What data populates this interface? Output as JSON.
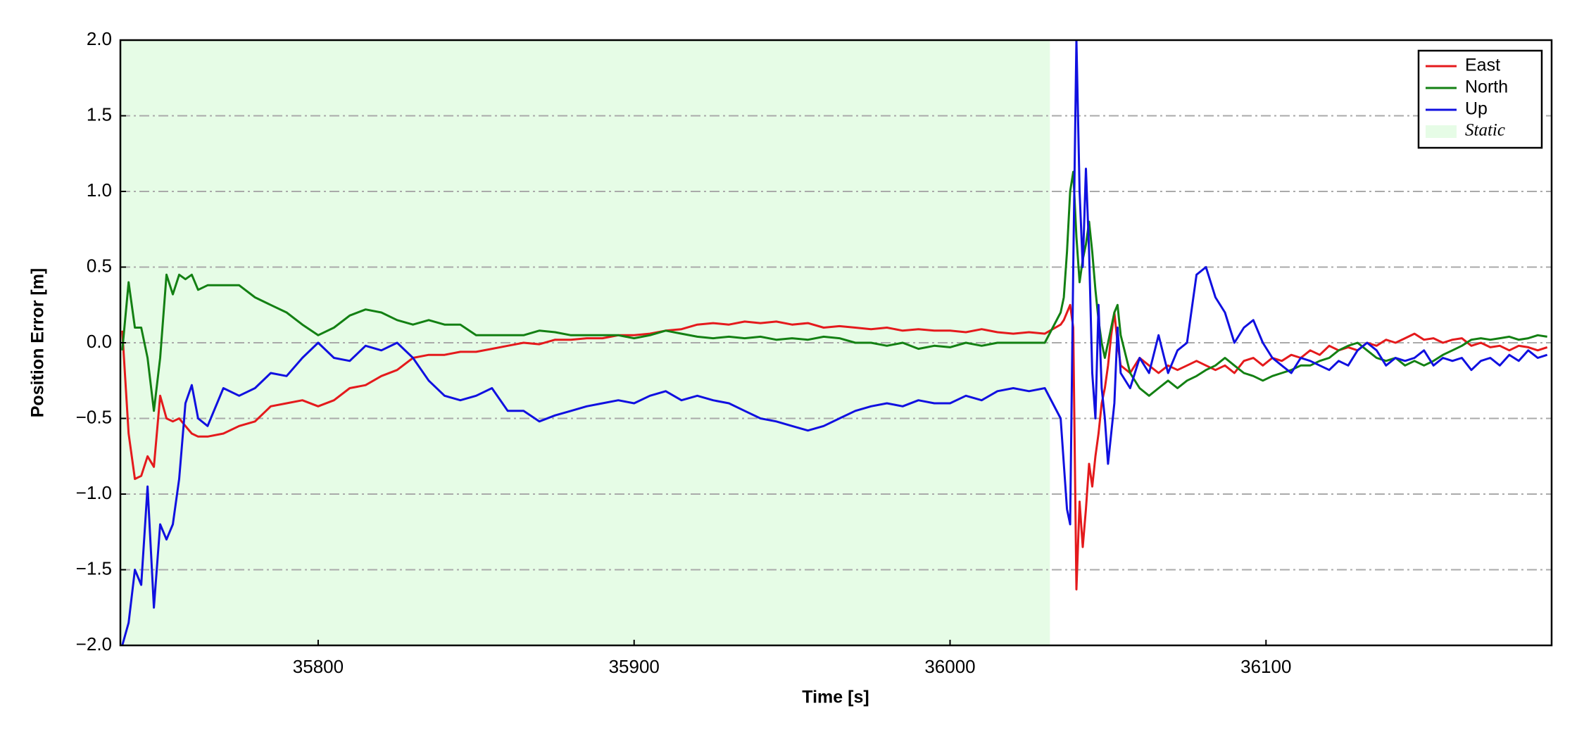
{
  "chart_data": {
    "type": "line",
    "xlabel": "Time [s]",
    "ylabel": "Position Error [m]",
    "xlim": [
      35737.4,
      36190.4
    ],
    "xticks": [
      35800,
      35900,
      36000,
      36100
    ],
    "ylim": [
      -2,
      2
    ],
    "yticks": [
      {
        "value": -2,
        "label": "−2.0"
      },
      {
        "value": -1.5,
        "label": "−1.5"
      },
      {
        "value": -1,
        "label": "−1.0"
      },
      {
        "value": -0.5,
        "label": "−0.5"
      },
      {
        "value": 0,
        "label": "0.0"
      },
      0.5,
      {
        "value": 1,
        "label": "1.0"
      },
      1.5,
      {
        "value": 2,
        "label": "2.0"
      }
    ],
    "grid": true,
    "legend": "upper right",
    "spans": [
      {
        "name": "Static",
        "color": "#e6fce6",
        "x": [
          35737.4,
          36031.6
        ]
      }
    ],
    "x": [
      35738,
      35740,
      35742,
      35744,
      35746,
      35748,
      35750,
      35752,
      35754,
      35756,
      35758,
      35760,
      35762,
      35765,
      35770,
      35775,
      35780,
      35785,
      35790,
      35795,
      35800,
      35805,
      35810,
      35815,
      35820,
      35825,
      35830,
      35835,
      35840,
      35845,
      35850,
      35855,
      35860,
      35865,
      35870,
      35875,
      35880,
      35885,
      35890,
      35895,
      35900,
      35905,
      35910,
      35915,
      35920,
      35925,
      35930,
      35935,
      35940,
      35945,
      35950,
      35955,
      35960,
      35965,
      35970,
      35975,
      35980,
      35985,
      35990,
      35995,
      36000,
      36005,
      36010,
      36015,
      36020,
      36025,
      36030,
      36035,
      36036,
      36037,
      36038,
      36039,
      36040,
      36041,
      36042,
      36043,
      36044,
      36045,
      36046,
      36047,
      36048,
      36049,
      36050,
      36051,
      36052,
      36053,
      36054,
      36057,
      36060,
      36063,
      36066,
      36069,
      36072,
      36075,
      36078,
      36081,
      36084,
      36087,
      36090,
      36093,
      36096,
      36099,
      36102,
      36105,
      36108,
      36111,
      36114,
      36117,
      36120,
      36123,
      36126,
      36129,
      36132,
      36135,
      36138,
      36141,
      36144,
      36147,
      36150,
      36153,
      36156,
      36159,
      36162,
      36165,
      36168,
      36171,
      36174,
      36177,
      36180,
      36183,
      36186,
      36189
    ],
    "series": [
      {
        "name": "East",
        "color": "#e41a1c",
        "values": [
          0.08,
          -0.6,
          -0.9,
          -0.88,
          -0.75,
          -0.82,
          -0.35,
          -0.5,
          -0.52,
          -0.5,
          -0.55,
          -0.6,
          -0.62,
          -0.62,
          -0.6,
          -0.55,
          -0.52,
          -0.42,
          -0.4,
          -0.38,
          -0.42,
          -0.38,
          -0.3,
          -0.28,
          -0.22,
          -0.18,
          -0.1,
          -0.08,
          -0.08,
          -0.06,
          -0.06,
          -0.04,
          -0.02,
          0.0,
          -0.01,
          0.02,
          0.02,
          0.03,
          0.03,
          0.05,
          0.05,
          0.06,
          0.08,
          0.09,
          0.12,
          0.13,
          0.12,
          0.14,
          0.13,
          0.14,
          0.12,
          0.13,
          0.1,
          0.11,
          0.1,
          0.09,
          0.1,
          0.08,
          0.09,
          0.08,
          0.08,
          0.07,
          0.09,
          0.07,
          0.06,
          0.07,
          0.06,
          0.12,
          0.15,
          0.2,
          0.25,
          0.1,
          -1.63,
          -1.05,
          -1.35,
          -1.1,
          -0.8,
          -0.95,
          -0.75,
          -0.6,
          -0.4,
          -0.3,
          -0.15,
          0.05,
          0.2,
          0.0,
          -0.15,
          -0.2,
          -0.1,
          -0.15,
          -0.2,
          -0.15,
          -0.18,
          -0.15,
          -0.12,
          -0.15,
          -0.18,
          -0.15,
          -0.2,
          -0.12,
          -0.1,
          -0.15,
          -0.1,
          -0.12,
          -0.08,
          -0.1,
          -0.05,
          -0.08,
          -0.02,
          -0.05,
          -0.03,
          -0.05,
          0.0,
          -0.02,
          0.02,
          0.0,
          0.03,
          0.06,
          0.02,
          0.03,
          0.0,
          0.02,
          0.03,
          -0.02,
          0.0,
          -0.03,
          -0.02,
          -0.05,
          -0.02,
          -0.03,
          -0.05,
          -0.03
        ]
      },
      {
        "name": "North",
        "color": "#138013",
        "values": [
          -0.05,
          0.4,
          0.1,
          0.1,
          -0.1,
          -0.45,
          -0.1,
          0.45,
          0.32,
          0.45,
          0.42,
          0.45,
          0.35,
          0.38,
          0.38,
          0.38,
          0.3,
          0.25,
          0.2,
          0.12,
          0.05,
          0.1,
          0.18,
          0.22,
          0.2,
          0.15,
          0.12,
          0.15,
          0.12,
          0.12,
          0.05,
          0.05,
          0.05,
          0.05,
          0.08,
          0.07,
          0.05,
          0.05,
          0.05,
          0.05,
          0.03,
          0.05,
          0.08,
          0.06,
          0.04,
          0.03,
          0.04,
          0.03,
          0.04,
          0.02,
          0.03,
          0.02,
          0.04,
          0.03,
          0.0,
          0.0,
          -0.02,
          0.0,
          -0.04,
          -0.02,
          -0.03,
          0.0,
          -0.02,
          0.0,
          0.0,
          0.0,
          0.0,
          0.2,
          0.3,
          0.6,
          1.0,
          1.13,
          0.7,
          0.4,
          0.55,
          0.65,
          0.8,
          0.6,
          0.35,
          0.15,
          0.0,
          -0.1,
          0.0,
          0.1,
          0.2,
          0.25,
          0.05,
          -0.2,
          -0.3,
          -0.35,
          -0.3,
          -0.25,
          -0.3,
          -0.25,
          -0.22,
          -0.18,
          -0.15,
          -0.1,
          -0.15,
          -0.2,
          -0.22,
          -0.25,
          -0.22,
          -0.2,
          -0.18,
          -0.15,
          -0.15,
          -0.12,
          -0.1,
          -0.05,
          -0.02,
          0.0,
          -0.05,
          -0.1,
          -0.12,
          -0.1,
          -0.15,
          -0.12,
          -0.15,
          -0.12,
          -0.08,
          -0.05,
          -0.02,
          0.02,
          0.03,
          0.02,
          0.03,
          0.04,
          0.02,
          0.03,
          0.05,
          0.04
        ]
      },
      {
        "name": "Up",
        "color": "#1010e0",
        "values": [
          -2.0,
          -1.85,
          -1.5,
          -1.6,
          -0.95,
          -1.75,
          -1.2,
          -1.3,
          -1.2,
          -0.9,
          -0.4,
          -0.28,
          -0.5,
          -0.55,
          -0.3,
          -0.35,
          -0.3,
          -0.2,
          -0.22,
          -0.1,
          0.0,
          -0.1,
          -0.12,
          -0.02,
          -0.05,
          0.0,
          -0.1,
          -0.25,
          -0.35,
          -0.38,
          -0.35,
          -0.3,
          -0.45,
          -0.45,
          -0.52,
          -0.48,
          -0.45,
          -0.42,
          -0.4,
          -0.38,
          -0.4,
          -0.35,
          -0.32,
          -0.38,
          -0.35,
          -0.38,
          -0.4,
          -0.45,
          -0.5,
          -0.52,
          -0.55,
          -0.58,
          -0.55,
          -0.5,
          -0.45,
          -0.42,
          -0.4,
          -0.42,
          -0.38,
          -0.4,
          -0.4,
          -0.35,
          -0.38,
          -0.32,
          -0.3,
          -0.32,
          -0.3,
          -0.5,
          -0.8,
          -1.1,
          -1.2,
          0.5,
          2.0,
          1.0,
          0.5,
          1.15,
          0.6,
          -0.2,
          -0.5,
          0.25,
          -0.3,
          -0.5,
          -0.8,
          -0.6,
          -0.4,
          0.1,
          -0.2,
          -0.3,
          -0.1,
          -0.2,
          0.05,
          -0.2,
          -0.05,
          0.0,
          0.45,
          0.5,
          0.3,
          0.2,
          0.0,
          0.1,
          0.15,
          0.0,
          -0.1,
          -0.15,
          -0.2,
          -0.1,
          -0.12,
          -0.15,
          -0.18,
          -0.12,
          -0.15,
          -0.05,
          0.0,
          -0.05,
          -0.15,
          -0.1,
          -0.12,
          -0.1,
          -0.05,
          -0.15,
          -0.1,
          -0.12,
          -0.1,
          -0.18,
          -0.12,
          -0.1,
          -0.15,
          -0.08,
          -0.12,
          -0.05,
          -0.1,
          -0.08
        ]
      }
    ]
  }
}
